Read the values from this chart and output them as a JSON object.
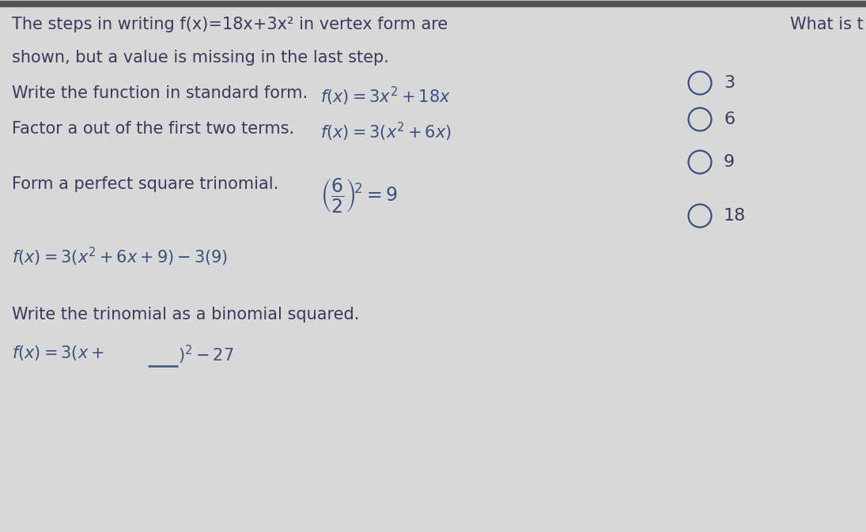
{
  "background_color": "#d8d8d8",
  "text_color": "#3a3a5c",
  "formula_color": "#3a5080",
  "radio_color": "#3a5080",
  "title_line1": "The steps in writing f(x)=18x+3x² in vertex form are",
  "title_line2": "shown, but a value is missing in the last step.",
  "right_title": "What is t",
  "step1_label": "Write the function in standard form.",
  "step2_label": "Factor a out of the first two terms.",
  "step3_label": "Form a perfect square trinomial.",
  "step5_label": "Write the trinomial as a binomial squared.",
  "choices": [
    "3",
    "6",
    "9",
    "18"
  ],
  "fig_width": 10.95,
  "fig_height": 6.73
}
